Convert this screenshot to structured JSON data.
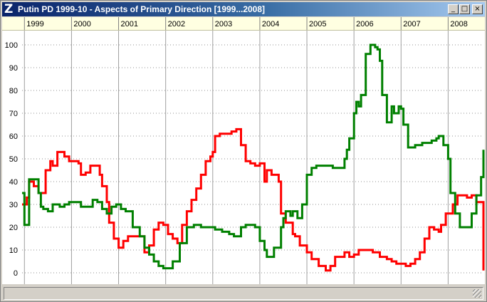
{
  "window": {
    "title": "Putin PD 1999-10 - Aspects of Primary Direction [1999...2008]",
    "icon": "Z",
    "controls": {
      "minimize": "_",
      "maximize": "□",
      "close": "×"
    }
  },
  "colors": {
    "series_red": "#ff0000",
    "series_green": "#008000",
    "grid": "#a0a0a0",
    "title_bar": "#0a246a"
  },
  "chart_data": {
    "type": "line",
    "x_tick_labels": [
      "1999",
      "2000",
      "2001",
      "2002",
      "2003",
      "2004",
      "2005",
      "2006",
      "2007",
      "2008"
    ],
    "x_range": [
      1998.95,
      2008.75
    ],
    "y_ticks": [
      "0",
      "10",
      "20",
      "30",
      "40",
      "50",
      "60",
      "70",
      "80",
      "90",
      "100"
    ],
    "ylim": [
      0,
      100
    ],
    "grid": true,
    "series": [
      {
        "color": "#ff0000",
        "x": [
          1998.95,
          1999.05,
          1999.1,
          1999.2,
          1999.3,
          1999.45,
          1999.55,
          1999.6,
          1999.7,
          1999.85,
          1999.95,
          2000.0,
          2000.15,
          2000.2,
          2000.3,
          2000.4,
          2000.5,
          2000.6,
          2000.65,
          2000.75,
          2000.8,
          2000.9,
          2001.0,
          2001.1,
          2001.2,
          2001.3,
          2001.4,
          2001.5,
          2001.55,
          2001.65,
          2001.75,
          2001.85,
          2001.95,
          2002.0,
          2002.05,
          2002.15,
          2002.25,
          2002.35,
          2002.45,
          2002.55,
          2002.65,
          2002.75,
          2002.85,
          2002.95,
          2003.0,
          2003.05,
          2003.15,
          2003.3,
          2003.4,
          2003.5,
          2003.6,
          2003.7,
          2003.8,
          2003.9,
          2004.0,
          2004.1,
          2004.15,
          2004.25,
          2004.4,
          2004.45,
          2004.55,
          2004.7,
          2004.75,
          2004.85,
          2005.0,
          2005.1,
          2005.25,
          2005.4,
          2005.5,
          2005.6,
          2005.75,
          2005.8,
          2005.9,
          2006.0,
          2006.1,
          2006.2,
          2006.3,
          2006.4,
          2006.55,
          2006.7,
          2006.8,
          2006.9,
          2007.0,
          2007.1,
          2007.2,
          2007.3,
          2007.4,
          2007.5,
          2007.6,
          2007.7,
          2007.8,
          2007.85,
          2007.95,
          2008.05,
          2008.1,
          2008.2,
          2008.3,
          2008.4,
          2008.5,
          2008.6,
          2008.7,
          2008.75
        ],
        "values": [
          30,
          33,
          40,
          38,
          35,
          45,
          49,
          47,
          53,
          51,
          49,
          49,
          48,
          43,
          44,
          47,
          47,
          43,
          38,
          31,
          22,
          15,
          11,
          14,
          16,
          16,
          16,
          16,
          9,
          12,
          19,
          22,
          21,
          21,
          17,
          15,
          13,
          21,
          27,
          32,
          37,
          43,
          49,
          51,
          53,
          60,
          61,
          61,
          62,
          63,
          56,
          49,
          48,
          47,
          48,
          40,
          45,
          43,
          40,
          26,
          22,
          17,
          16,
          12,
          9,
          6,
          3,
          1,
          3,
          7,
          7,
          9,
          7,
          8,
          10,
          10,
          10,
          9,
          7,
          6,
          5,
          4,
          4,
          3,
          4,
          6,
          9,
          15,
          20,
          19,
          18,
          21,
          26,
          26,
          30,
          34,
          34,
          33,
          34,
          31,
          31,
          1
        ]
      },
      {
        "color": "#008000",
        "x": [
          1998.95,
          1999.0,
          1999.1,
          1999.2,
          1999.3,
          1999.35,
          1999.4,
          1999.5,
          1999.6,
          1999.75,
          1999.85,
          1999.95,
          2000.1,
          2000.2,
          2000.3,
          2000.4,
          2000.45,
          2000.55,
          2000.65,
          2000.75,
          2000.85,
          2000.95,
          2001.05,
          2001.15,
          2001.3,
          2001.45,
          2001.55,
          2001.65,
          2001.75,
          2001.85,
          2001.95,
          2002.05,
          2002.15,
          2002.3,
          2002.45,
          2002.6,
          2002.75,
          2002.9,
          2003.05,
          2003.2,
          2003.35,
          2003.45,
          2003.6,
          2003.7,
          2003.8,
          2003.9,
          2004.0,
          2004.1,
          2004.15,
          2004.3,
          2004.45,
          2004.5,
          2004.55,
          2004.65,
          2004.7,
          2004.8,
          2004.9,
          2005.0,
          2005.1,
          2005.2,
          2005.3,
          2005.4,
          2005.55,
          2005.7,
          2005.8,
          2005.85,
          2005.9,
          2006.0,
          2006.05,
          2006.1,
          2006.15,
          2006.25,
          2006.35,
          2006.45,
          2006.5,
          2006.55,
          2006.6,
          2006.7,
          2006.8,
          2006.85,
          2006.95,
          2007.0,
          2007.05,
          2007.15,
          2007.3,
          2007.45,
          2007.55,
          2007.65,
          2007.75,
          2007.8,
          2007.9,
          2008.0,
          2008.05,
          2008.15,
          2008.25,
          2008.35,
          2008.5,
          2008.6,
          2008.7,
          2008.75
        ],
        "values": [
          35,
          21,
          41,
          41,
          35,
          29,
          28,
          27,
          30,
          29,
          30,
          31,
          31,
          29,
          29,
          29,
          32,
          31,
          28,
          26,
          29,
          30,
          28,
          27,
          20,
          16,
          11,
          8,
          5,
          3,
          2,
          2,
          5,
          13,
          20,
          21,
          20,
          20,
          19,
          18,
          17,
          16,
          20,
          21,
          21,
          20,
          14,
          10,
          7,
          11,
          20,
          24,
          27,
          25,
          27,
          24,
          30,
          43,
          46,
          47,
          47,
          47,
          46,
          46,
          50,
          54,
          59,
          70,
          75,
          73,
          78,
          96,
          100,
          99,
          98,
          93,
          78,
          66,
          73,
          70,
          73,
          72,
          65,
          55,
          56,
          57,
          57,
          58,
          59,
          60,
          56,
          50,
          35,
          26,
          20,
          20,
          26,
          34,
          42,
          54
        ]
      }
    ]
  }
}
